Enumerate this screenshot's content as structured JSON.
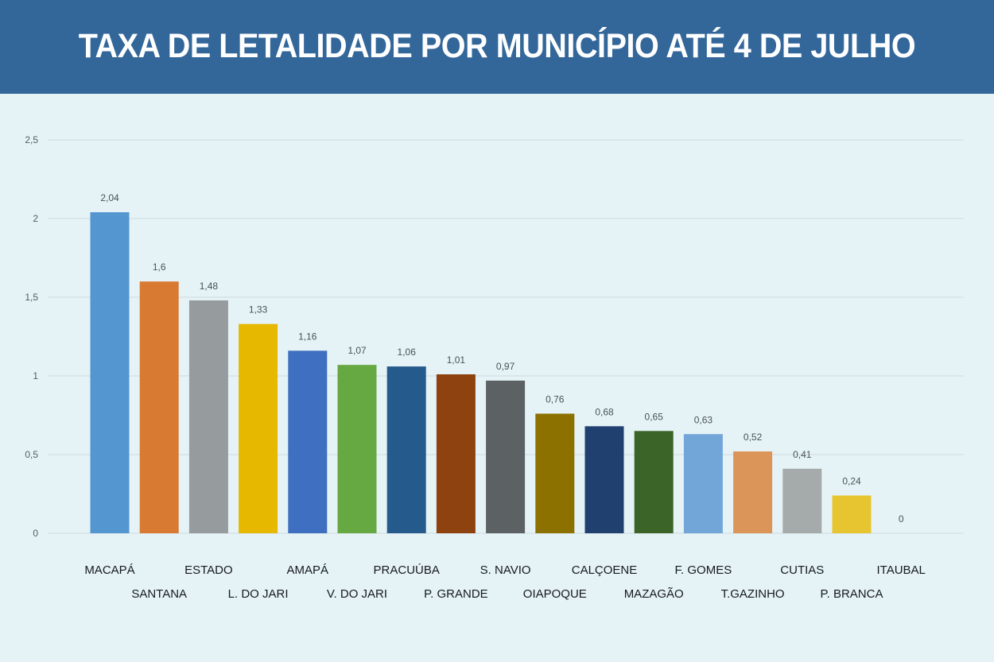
{
  "header": {
    "title": "TAXA DE LETALIDADE POR MUNICÍPIO ATÉ 4 DE JULHO"
  },
  "chart_data": {
    "type": "bar",
    "title": "TAXA DE LETALIDADE POR MUNICÍPIO ATÉ 4 DE JULHO",
    "xlabel": "",
    "ylabel": "",
    "ylim": [
      0,
      2.5
    ],
    "yticks": [
      0,
      0.5,
      1,
      1.5,
      2,
      2.5
    ],
    "ytick_labels": [
      "0",
      "0,5",
      "1",
      "1,5",
      "2",
      "2,5"
    ],
    "grid": true,
    "categories": [
      "MACAPÁ",
      "SANTANA",
      "ESTADO",
      "L. DO JARI",
      "AMAPÁ",
      "V. DO JARI",
      "PRACUÚBA",
      "P. GRANDE",
      "S. NAVIO",
      "OIAPOQUE",
      "CALÇOENE",
      "MAZAGÃO",
      "F. GOMES",
      "T.GAZINHO",
      "CUTIAS",
      "P. BRANCA",
      "ITAUBAL"
    ],
    "values": [
      2.04,
      1.6,
      1.48,
      1.33,
      1.16,
      1.07,
      1.06,
      1.01,
      0.97,
      0.76,
      0.68,
      0.65,
      0.63,
      0.52,
      0.41,
      0.24,
      0
    ],
    "data_labels": [
      "2,04",
      "1,6",
      "1,48",
      "1,33",
      "1,16",
      "1,07",
      "1,06",
      "1,01",
      "0,97",
      "0,76",
      "0,68",
      "0,65",
      "0,63",
      "0,52",
      "0,41",
      "0,24",
      "0"
    ],
    "colors": [
      "#5496d0",
      "#d97a33",
      "#969c9d",
      "#e6b800",
      "#3f6fc0",
      "#66a842",
      "#255a8c",
      "#8e420f",
      "#5c6163",
      "#8c7000",
      "#20406f",
      "#3b6429",
      "#73a6d8",
      "#dc9558",
      "#a5abab",
      "#e6c530",
      "#5496d0"
    ]
  }
}
